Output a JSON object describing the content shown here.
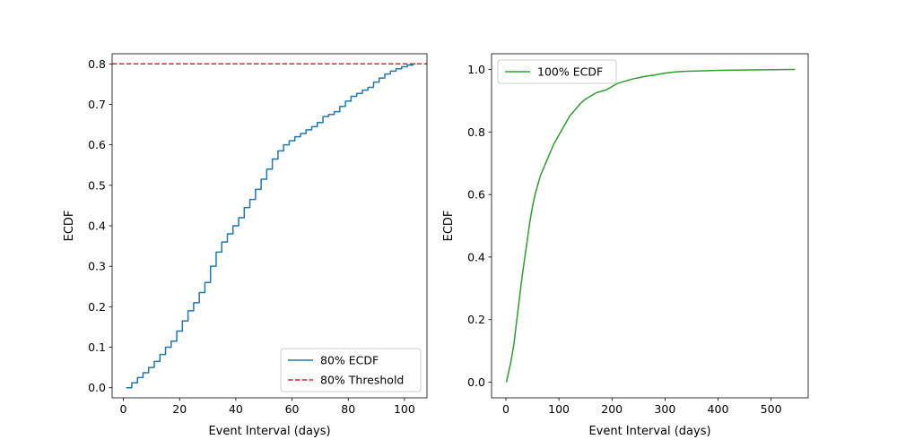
{
  "chart_data": [
    {
      "type": "line",
      "title": "",
      "xlabel": "Event Interval (days)",
      "ylabel": "ECDF",
      "xlim": [
        -4,
        108
      ],
      "ylim": [
        -0.025,
        0.825
      ],
      "xticks": [
        0,
        20,
        40,
        60,
        80,
        100
      ],
      "yticks": [
        0.0,
        0.1,
        0.2,
        0.3,
        0.4,
        0.5,
        0.6,
        0.7,
        0.8
      ],
      "xtick_labels": [
        "0",
        "20",
        "40",
        "60",
        "80",
        "100"
      ],
      "ytick_labels": [
        "0.0",
        "0.1",
        "0.2",
        "0.3",
        "0.4",
        "0.5",
        "0.6",
        "0.7",
        "0.8"
      ],
      "grid": false,
      "legend_position": "lower-right",
      "series": [
        {
          "name": "80% ECDF",
          "style": "step",
          "color": "#1f77b4",
          "x": [
            1,
            3,
            5,
            7,
            9,
            11,
            13,
            15,
            17,
            19,
            21,
            23,
            25,
            27,
            29,
            31,
            33,
            35,
            37,
            39,
            41,
            43,
            45,
            47,
            49,
            51,
            53,
            55,
            57,
            59,
            61,
            63,
            65,
            67,
            69,
            71,
            73,
            75,
            77,
            79,
            81,
            83,
            85,
            87,
            89,
            91,
            93,
            95,
            97,
            99,
            101,
            103,
            104
          ],
          "y": [
            0.0,
            0.012,
            0.025,
            0.037,
            0.05,
            0.065,
            0.082,
            0.1,
            0.115,
            0.14,
            0.165,
            0.19,
            0.21,
            0.235,
            0.26,
            0.3,
            0.335,
            0.36,
            0.38,
            0.4,
            0.42,
            0.445,
            0.465,
            0.49,
            0.515,
            0.54,
            0.565,
            0.585,
            0.6,
            0.61,
            0.62,
            0.628,
            0.637,
            0.645,
            0.655,
            0.67,
            0.675,
            0.682,
            0.695,
            0.708,
            0.72,
            0.727,
            0.735,
            0.742,
            0.755,
            0.765,
            0.775,
            0.782,
            0.788,
            0.793,
            0.797,
            0.8,
            0.8
          ]
        },
        {
          "name": "80% Threshold",
          "style": "hline",
          "dashed": true,
          "color": "#d62728",
          "y": 0.8
        }
      ]
    },
    {
      "type": "line",
      "title": "",
      "xlabel": "Event Interval (days)",
      "ylabel": "ECDF",
      "xlim": [
        -27,
        570
      ],
      "ylim": [
        -0.05,
        1.05
      ],
      "xticks": [
        0,
        100,
        200,
        300,
        400,
        500
      ],
      "yticks": [
        0.0,
        0.2,
        0.4,
        0.6,
        0.8,
        1.0
      ],
      "xtick_labels": [
        "0",
        "100",
        "200",
        "300",
        "400",
        "500"
      ],
      "ytick_labels": [
        "0.0",
        "0.2",
        "0.4",
        "0.6",
        "0.8",
        "1.0"
      ],
      "grid": false,
      "legend_position": "upper-left",
      "series": [
        {
          "name": "100% ECDF",
          "style": "line",
          "color": "#2ca02c",
          "x": [
            1,
            5,
            10,
            15,
            20,
            25,
            30,
            35,
            40,
            45,
            50,
            55,
            60,
            65,
            70,
            80,
            90,
            100,
            110,
            120,
            130,
            140,
            150,
            160,
            170,
            180,
            190,
            200,
            210,
            220,
            230,
            240,
            250,
            260,
            280,
            300,
            320,
            340,
            360,
            400,
            450,
            500,
            545
          ],
          "y": [
            0.0,
            0.03,
            0.07,
            0.12,
            0.19,
            0.26,
            0.33,
            0.39,
            0.45,
            0.51,
            0.56,
            0.6,
            0.63,
            0.66,
            0.68,
            0.72,
            0.76,
            0.79,
            0.82,
            0.85,
            0.87,
            0.89,
            0.905,
            0.915,
            0.925,
            0.93,
            0.935,
            0.945,
            0.955,
            0.96,
            0.965,
            0.97,
            0.973,
            0.977,
            0.982,
            0.988,
            0.992,
            0.994,
            0.995,
            0.997,
            0.998,
            0.999,
            1.0
          ]
        }
      ]
    }
  ]
}
